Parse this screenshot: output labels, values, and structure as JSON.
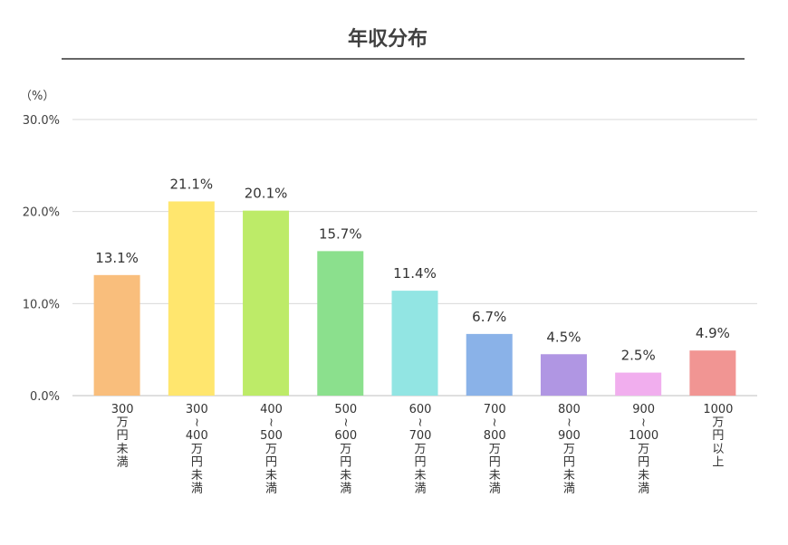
{
  "chart_data": {
    "type": "bar",
    "title": "年収分布",
    "ylabel": "（%）",
    "ylim": [
      0,
      30
    ],
    "yticks": [
      "0.0%",
      "10.0%",
      "20.0%",
      "30.0%"
    ],
    "grid": true,
    "categories": [
      [
        "300",
        "万円未満"
      ],
      [
        "300",
        "~",
        "400",
        "万円未満"
      ],
      [
        "400",
        "~",
        "500",
        "万円未満"
      ],
      [
        "500",
        "~",
        "600",
        "万円未満"
      ],
      [
        "600",
        "~",
        "700",
        "万円未満"
      ],
      [
        "700",
        "~",
        "800",
        "万円未満"
      ],
      [
        "800",
        "~",
        "900",
        "万円未満"
      ],
      [
        "900",
        "~",
        "1000",
        "万円未満"
      ],
      [
        "1000",
        "万円以上"
      ]
    ],
    "values": [
      13.1,
      21.1,
      20.1,
      15.7,
      11.4,
      6.7,
      4.5,
      2.5,
      4.9
    ],
    "value_labels": [
      "13.1%",
      "21.1%",
      "20.1%",
      "15.7%",
      "11.4%",
      "6.7%",
      "4.5%",
      "2.5%",
      "4.9%"
    ],
    "colors": [
      "#F9BE7C",
      "#FFE66E",
      "#BDEB68",
      "#8BE08D",
      "#92E5E3",
      "#8AB2E8",
      "#B096E3",
      "#F1AEEE",
      "#F19593"
    ]
  }
}
